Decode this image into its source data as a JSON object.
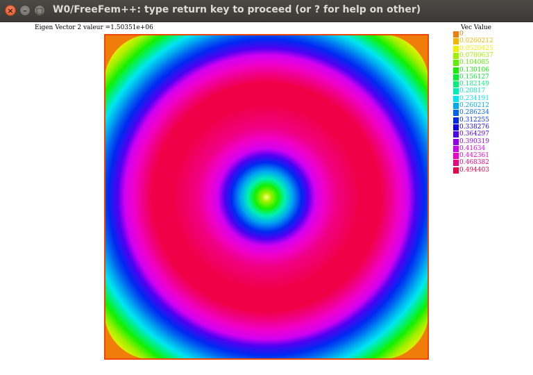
{
  "window": {
    "title": "W0/FreeFem++: type return key to proceed (or ? for help on other)",
    "buttons": {
      "close": "×",
      "minimize": "–",
      "maximize": "□"
    }
  },
  "plot": {
    "title": "Eigen  Vector 2 valeur =1.50351e+06"
  },
  "legend": {
    "title": "Vec Value",
    "items": [
      {
        "label": "0",
        "color": "#f07d0a"
      },
      {
        "label": "0.0260212",
        "color": "#f5b400"
      },
      {
        "label": "0.0520425",
        "color": "#f0f000"
      },
      {
        "label": "0.0780637",
        "color": "#a0f000"
      },
      {
        "label": "0.104085",
        "color": "#5af000"
      },
      {
        "label": "0.130106",
        "color": "#14f000"
      },
      {
        "label": "0.156127",
        "color": "#00f032"
      },
      {
        "label": "0.182149",
        "color": "#00f078"
      },
      {
        "label": "0.20817",
        "color": "#00f0b4"
      },
      {
        "label": "0.234191",
        "color": "#00e6f0"
      },
      {
        "label": "0.260212",
        "color": "#00aaf0"
      },
      {
        "label": "0.286234",
        "color": "#0064f0"
      },
      {
        "label": "0.312255",
        "color": "#0028f0"
      },
      {
        "label": "0.338276",
        "color": "#1400f0"
      },
      {
        "label": "0.364297",
        "color": "#5000f0"
      },
      {
        "label": "0.390319",
        "color": "#9600f0"
      },
      {
        "label": "0.41634",
        "color": "#d200f0"
      },
      {
        "label": "0.442361",
        "color": "#f000c8"
      },
      {
        "label": "0.468382",
        "color": "#f00082"
      },
      {
        "label": "0.494403",
        "color": "#f00046"
      }
    ]
  }
}
